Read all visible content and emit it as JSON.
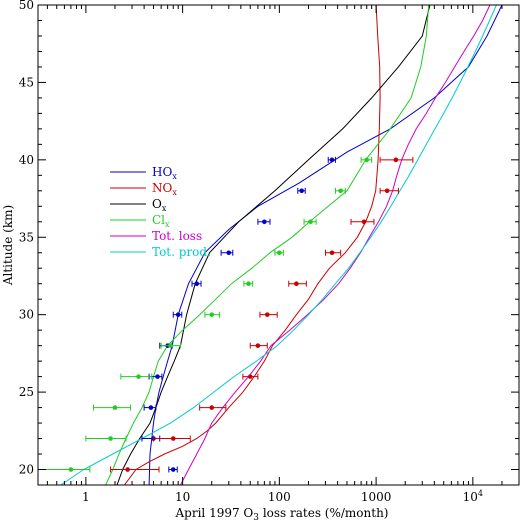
{
  "chart_data": {
    "type": "line",
    "title": "",
    "xlabel": "April 1997 O",
    "xlabel_sub": "3",
    "xlabel_tail": " loss rates (%/month)",
    "ylabel": "Altitude (km)",
    "xscale": "log",
    "xlim": [
      0.32,
      30000
    ],
    "ylim": [
      19,
      50
    ],
    "x_ticks": [
      {
        "value": 1,
        "label": "1",
        "sup": ""
      },
      {
        "value": 10,
        "label": "10",
        "sup": ""
      },
      {
        "value": 100,
        "label": "100",
        "sup": ""
      },
      {
        "value": 1000,
        "label": "1000",
        "sup": ""
      },
      {
        "value": 10000,
        "label": "10",
        "sup": "4"
      }
    ],
    "y_ticks": [
      20,
      25,
      30,
      35,
      40,
      45,
      50
    ],
    "grid": false,
    "legend_position": "left-middle",
    "legend": [
      {
        "base": "HO",
        "sub": "x",
        "color": "#0000cc"
      },
      {
        "base": "NO",
        "sub": "x",
        "color": "#cc0000"
      },
      {
        "base": "O",
        "sub": "x",
        "color": "#000000"
      },
      {
        "base": "Cl",
        "sub": "x",
        "color": "#22cc22"
      },
      {
        "base": "Tot. loss",
        "sub": "",
        "color": "#cc00cc"
      },
      {
        "base": "Tot. prod.",
        "sub": "",
        "color": "#00cccc"
      }
    ],
    "series": [
      {
        "key": "HOx",
        "color": "#0000cc",
        "curve": [
          [
            4.5,
            19
          ],
          [
            4.6,
            21
          ],
          [
            4.8,
            22
          ],
          [
            5,
            23
          ],
          [
            5.3,
            24
          ],
          [
            5.7,
            25
          ],
          [
            6.3,
            26
          ],
          [
            7,
            27
          ],
          [
            7.8,
            28
          ],
          [
            9,
            30
          ],
          [
            11.5,
            32
          ],
          [
            17,
            34
          ],
          [
            30,
            35.5
          ],
          [
            60,
            37
          ],
          [
            160,
            38.5
          ],
          [
            500,
            40.5
          ],
          [
            1400,
            42
          ],
          [
            4000,
            44
          ],
          [
            9000,
            46
          ],
          [
            14000,
            48
          ],
          [
            20000,
            50
          ]
        ],
        "points": [
          [
            8,
            20,
            0.8,
            0.8
          ],
          [
            5,
            22,
            1.2,
            0.8
          ],
          [
            4.7,
            24,
            0.7,
            0.6
          ],
          [
            5.5,
            26,
            1,
            0.6
          ],
          [
            7,
            28,
            1.2,
            0.8
          ],
          [
            9,
            30,
            1,
            0.8
          ],
          [
            14,
            32,
            1.5,
            1.5
          ],
          [
            30,
            34,
            5,
            3
          ],
          [
            70,
            36,
            10,
            10
          ],
          [
            170,
            38,
            15,
            15
          ],
          [
            350,
            40,
            30,
            30
          ]
        ]
      },
      {
        "key": "NOx",
        "color": "#cc0000",
        "curve": [
          [
            2.5,
            19
          ],
          [
            3.3,
            20
          ],
          [
            4.5,
            20.5
          ],
          [
            6.5,
            21
          ],
          [
            10,
            21.5
          ],
          [
            14,
            22
          ],
          [
            18,
            22.5
          ],
          [
            22,
            23
          ],
          [
            30,
            24
          ],
          [
            42,
            25
          ],
          [
            55,
            26
          ],
          [
            70,
            27
          ],
          [
            85,
            28
          ],
          [
            115,
            29
          ],
          [
            150,
            30
          ],
          [
            200,
            31
          ],
          [
            250,
            32
          ],
          [
            330,
            33
          ],
          [
            480,
            34
          ],
          [
            640,
            35
          ],
          [
            780,
            36
          ],
          [
            900,
            37
          ],
          [
            990,
            38
          ],
          [
            1050,
            40
          ],
          [
            1080,
            42
          ],
          [
            1100,
            44
          ],
          [
            1090,
            46
          ],
          [
            1040,
            48
          ],
          [
            1000,
            50
          ]
        ],
        "points": [
          [
            2.7,
            20,
            0.9,
            3
          ],
          [
            8,
            22,
            3,
            4
          ],
          [
            20,
            24,
            5,
            8
          ],
          [
            50,
            26,
            8,
            10
          ],
          [
            60,
            28,
            10,
            15
          ],
          [
            75,
            30,
            12,
            20
          ],
          [
            150,
            32,
            25,
            40
          ],
          [
            350,
            34,
            50,
            80
          ],
          [
            750,
            36,
            200,
            200
          ],
          [
            1300,
            38,
            200,
            400
          ],
          [
            1600,
            40,
            500,
            800
          ]
        ]
      },
      {
        "key": "Ox",
        "color": "#000000",
        "curve": [
          [
            2.1,
            19
          ],
          [
            2.4,
            20
          ],
          [
            2.9,
            21
          ],
          [
            3.6,
            22
          ],
          [
            4.6,
            23
          ],
          [
            5.3,
            24
          ],
          [
            6,
            25
          ],
          [
            7,
            26
          ],
          [
            8.2,
            27
          ],
          [
            9.5,
            28
          ],
          [
            11,
            30
          ],
          [
            13.5,
            32
          ],
          [
            19,
            34
          ],
          [
            38,
            36
          ],
          [
            90,
            38
          ],
          [
            200,
            40
          ],
          [
            450,
            42
          ],
          [
            900,
            44
          ],
          [
            1700,
            46
          ],
          [
            3000,
            48
          ],
          [
            3600,
            50
          ]
        ],
        "points": []
      },
      {
        "key": "Clx",
        "color": "#22cc22",
        "curve": [
          [
            1.6,
            19
          ],
          [
            1.9,
            20
          ],
          [
            2.2,
            21
          ],
          [
            2.6,
            22
          ],
          [
            3.1,
            23
          ],
          [
            3.8,
            24
          ],
          [
            4.5,
            25
          ],
          [
            5,
            26
          ],
          [
            5.6,
            27
          ],
          [
            7,
            28
          ],
          [
            10,
            29
          ],
          [
            15,
            30
          ],
          [
            22,
            31
          ],
          [
            32,
            32
          ],
          [
            52,
            33
          ],
          [
            80,
            34
          ],
          [
            135,
            35
          ],
          [
            205,
            36
          ],
          [
            320,
            37
          ],
          [
            500,
            38
          ],
          [
            780,
            40
          ],
          [
            1400,
            42
          ],
          [
            2300,
            44
          ],
          [
            2900,
            46
          ],
          [
            3300,
            48
          ],
          [
            3500,
            50
          ]
        ],
        "points": [
          [
            0.7,
            20,
            0.4,
            0.4
          ],
          [
            1.8,
            22,
            0.8,
            0.8
          ],
          [
            2,
            24,
            0.8,
            0.9
          ],
          [
            3.5,
            26,
            1.2,
            1.3
          ],
          [
            7.5,
            28,
            1.5,
            2
          ],
          [
            20,
            30,
            3,
            4
          ],
          [
            48,
            32,
            5,
            5
          ],
          [
            100,
            34,
            10,
            10
          ],
          [
            210,
            36,
            30,
            30
          ],
          [
            430,
            38,
            50,
            50
          ],
          [
            800,
            40,
            100,
            100
          ]
        ]
      },
      {
        "key": "Totloss",
        "color": "#cc00cc",
        "curve": [
          [
            9.5,
            19
          ],
          [
            11.5,
            20
          ],
          [
            14,
            21
          ],
          [
            17,
            22
          ],
          [
            20,
            23
          ],
          [
            26,
            24
          ],
          [
            35,
            25
          ],
          [
            48,
            26
          ],
          [
            64,
            27
          ],
          [
            82,
            28
          ],
          [
            128,
            29
          ],
          [
            195,
            30
          ],
          [
            290,
            31
          ],
          [
            410,
            32
          ],
          [
            540,
            33
          ],
          [
            690,
            34
          ],
          [
            850,
            35
          ],
          [
            1060,
            36
          ],
          [
            1280,
            37
          ],
          [
            1480,
            38
          ],
          [
            1640,
            39
          ],
          [
            1840,
            40
          ],
          [
            2150,
            41
          ],
          [
            2600,
            42
          ],
          [
            3300,
            43
          ],
          [
            4100,
            44
          ],
          [
            5200,
            45
          ],
          [
            6500,
            46
          ],
          [
            8100,
            47
          ],
          [
            10200,
            48
          ],
          [
            12600,
            49
          ],
          [
            15000,
            50
          ]
        ],
        "points": []
      },
      {
        "key": "Totprod",
        "color": "#00cccc",
        "curve": [
          [
            0.55,
            19
          ],
          [
            0.95,
            20
          ],
          [
            1.9,
            21
          ],
          [
            3.8,
            22
          ],
          [
            7.5,
            23
          ],
          [
            13,
            24
          ],
          [
            21,
            25
          ],
          [
            34,
            26
          ],
          [
            58,
            27
          ],
          [
            95,
            28
          ],
          [
            140,
            29
          ],
          [
            200,
            30
          ],
          [
            280,
            31
          ],
          [
            380,
            32
          ],
          [
            520,
            33
          ],
          [
            680,
            34
          ],
          [
            880,
            35
          ],
          [
            1130,
            36
          ],
          [
            1420,
            37
          ],
          [
            1760,
            38
          ],
          [
            2200,
            39
          ],
          [
            2700,
            40
          ],
          [
            3300,
            41
          ],
          [
            4050,
            42
          ],
          [
            5000,
            43
          ],
          [
            6100,
            44
          ],
          [
            7400,
            45
          ],
          [
            8900,
            46
          ],
          [
            10600,
            47
          ],
          [
            12600,
            48
          ],
          [
            14900,
            49
          ],
          [
            17500,
            50
          ]
        ],
        "points": []
      }
    ]
  }
}
